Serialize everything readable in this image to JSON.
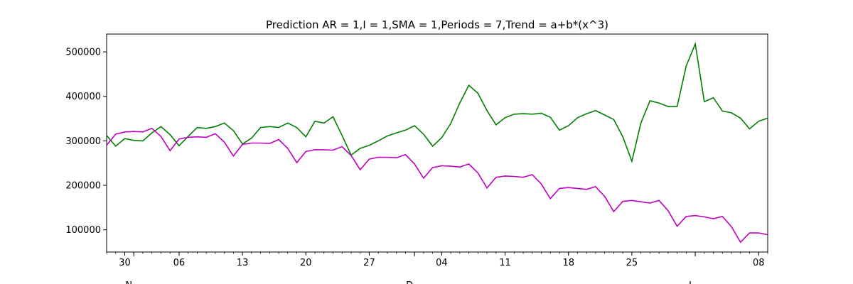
{
  "chart_data": {
    "type": "line",
    "title": "Prediction AR = 1,I = 1,SMA = 1,Periods = 7,Trend = a+b*(x^3)",
    "xlabel": "",
    "ylabel": "",
    "x_start_date": "2020-11-28",
    "x_end_date": "2021-02-09",
    "ylim": [
      50000,
      540000
    ],
    "yticks": [
      100000,
      200000,
      300000,
      400000,
      500000
    ],
    "ytick_labels": [
      "100000",
      "200000",
      "300000",
      "400000",
      "500000"
    ],
    "xticks": [
      {
        "date": "2020-11-30",
        "label": "30"
      },
      {
        "date": "2020-12-06",
        "label": "06"
      },
      {
        "date": "2020-12-13",
        "label": "13"
      },
      {
        "date": "2020-12-20",
        "label": "20"
      },
      {
        "date": "2020-12-27",
        "label": "27"
      },
      {
        "date": "2021-01-04",
        "label": "04"
      },
      {
        "date": "2021-01-11",
        "label": "11"
      },
      {
        "date": "2021-01-18",
        "label": "18"
      },
      {
        "date": "2021-01-25",
        "label": "25"
      },
      {
        "date": "2021-02-08",
        "label": "08"
      }
    ],
    "month_labels": [
      {
        "date": "2020-12-01",
        "label": "N"
      },
      {
        "date": "2021-01-01",
        "label": "D"
      },
      {
        "date": "2021-02-01",
        "label": "J"
      }
    ],
    "grid": false,
    "series": [
      {
        "color": "#008000",
        "values": [
          312000,
          288000,
          305000,
          301000,
          300000,
          318000,
          332000,
          314000,
          289000,
          310000,
          330000,
          328000,
          332000,
          340000,
          323000,
          293000,
          306000,
          330000,
          332000,
          330000,
          340000,
          330000,
          309000,
          344000,
          340000,
          354000,
          312000,
          268000,
          283000,
          290000,
          300000,
          311000,
          318000,
          324000,
          334000,
          315000,
          288000,
          307000,
          339000,
          385000,
          425000,
          407000,
          368000,
          336000,
          352000,
          360000,
          361000,
          360000,
          362000,
          353000,
          324000,
          334000,
          352000,
          361000,
          368000,
          358000,
          348000,
          309000,
          254000,
          340000,
          390000,
          385000,
          377000,
          377000,
          468000,
          518000,
          388000,
          397000,
          367000,
          363000,
          351000,
          327000,
          344000,
          351000
        ]
      },
      {
        "color": "#bf00bf",
        "values": [
          290000,
          315000,
          320000,
          321000,
          320000,
          328000,
          310000,
          278000,
          304000,
          308000,
          309000,
          308000,
          316000,
          297000,
          266000,
          292000,
          295000,
          295000,
          294000,
          303000,
          283000,
          251000,
          276000,
          280000,
          280000,
          279000,
          287000,
          267000,
          235000,
          259000,
          263000,
          263000,
          262000,
          269000,
          248000,
          216000,
          240000,
          244000,
          243000,
          241000,
          248000,
          228000,
          194000,
          218000,
          221000,
          220000,
          218000,
          224000,
          203000,
          170000,
          193000,
          195000,
          193000,
          191000,
          197000,
          175000,
          141000,
          164000,
          166000,
          163000,
          160000,
          166000,
          143000,
          108000,
          130000,
          132000,
          129000,
          125000,
          130000,
          107000,
          72000,
          93000,
          93000,
          89000
        ]
      }
    ]
  }
}
